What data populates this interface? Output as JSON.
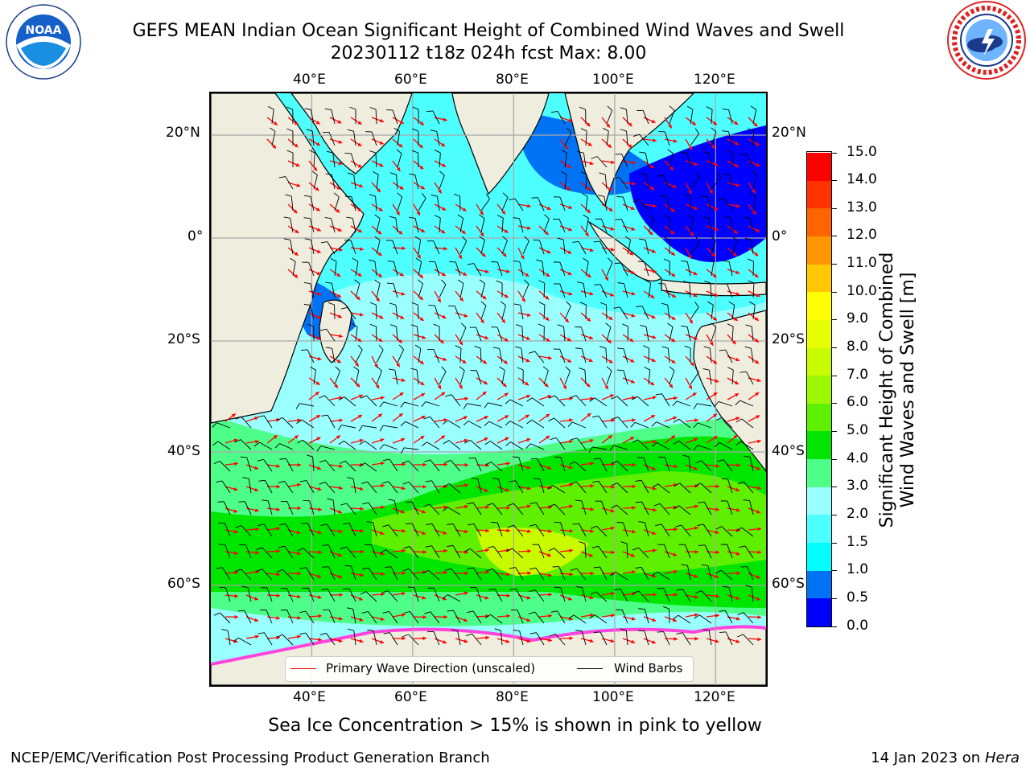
{
  "header": {
    "title_line1": "GEFS MEAN Indian Ocean Significant Height of Combined Wind Waves and Swell",
    "title_line2": "20230112 t18z 024h fcst   Max: 8.00"
  },
  "logos": {
    "left": {
      "icon": "noaa-logo",
      "text": "NOAA",
      "ring_text": "NATIONAL OCEANIC AND ATMOSPHERIC ADMINISTRATION · U.S. DEPARTMENT OF COMMERCE"
    },
    "right": {
      "icon": "nws-logo",
      "ring_text": "NATIONAL WEATHER SERVICE"
    }
  },
  "map": {
    "lon_ticks_top": [
      "40°E",
      "60°E",
      "80°E",
      "100°E",
      "120°E"
    ],
    "lon_ticks_bottom": [
      "40°E",
      "60°E",
      "80°E",
      "100°E",
      "120°E"
    ],
    "lat_ticks_left": [
      "20°N",
      "0°",
      "20°S",
      "40°S",
      "60°S"
    ],
    "lat_ticks_right": [
      "20°N",
      "0°",
      "20°S",
      "40°S",
      "60°S"
    ],
    "legend": {
      "wave_direction": "Primary Wave Direction (unscaled)",
      "wind_barbs": "Wind Barbs"
    },
    "colors": {
      "land": "#efedde",
      "wave_arrow": "#ff0000",
      "barb": "#000000"
    }
  },
  "colorbar": {
    "label_line1": "Significant Height of Combined",
    "label_line2": "Wind Waves and Swell [m]",
    "ticks": [
      "0.0",
      "0.5",
      "1.0",
      "1.5",
      "2.0",
      "3.0",
      "4.0",
      "5.0",
      "6.0",
      "7.0",
      "8.0",
      "9.0",
      "10.0",
      "11.0",
      "12.0",
      "13.0",
      "14.0",
      "15.0"
    ],
    "colors": [
      "#0000ff",
      "#0073f5",
      "#00ffff",
      "#4dffff",
      "#99ffff",
      "#4dff88",
      "#00e600",
      "#5fef00",
      "#9df700",
      "#c8fa00",
      "#e8ff00",
      "#ffff00",
      "#ffc800",
      "#ff9600",
      "#ff6400",
      "#ff3200",
      "#ff0000"
    ]
  },
  "subtitle": "Sea Ice Concentration > 15% is shown in pink to yellow",
  "footer": {
    "left": "NCEP/EMC/Verification Post Processing Product Generation Branch",
    "right_date": "14 Jan 2023 on ",
    "right_host": "Hera"
  }
}
